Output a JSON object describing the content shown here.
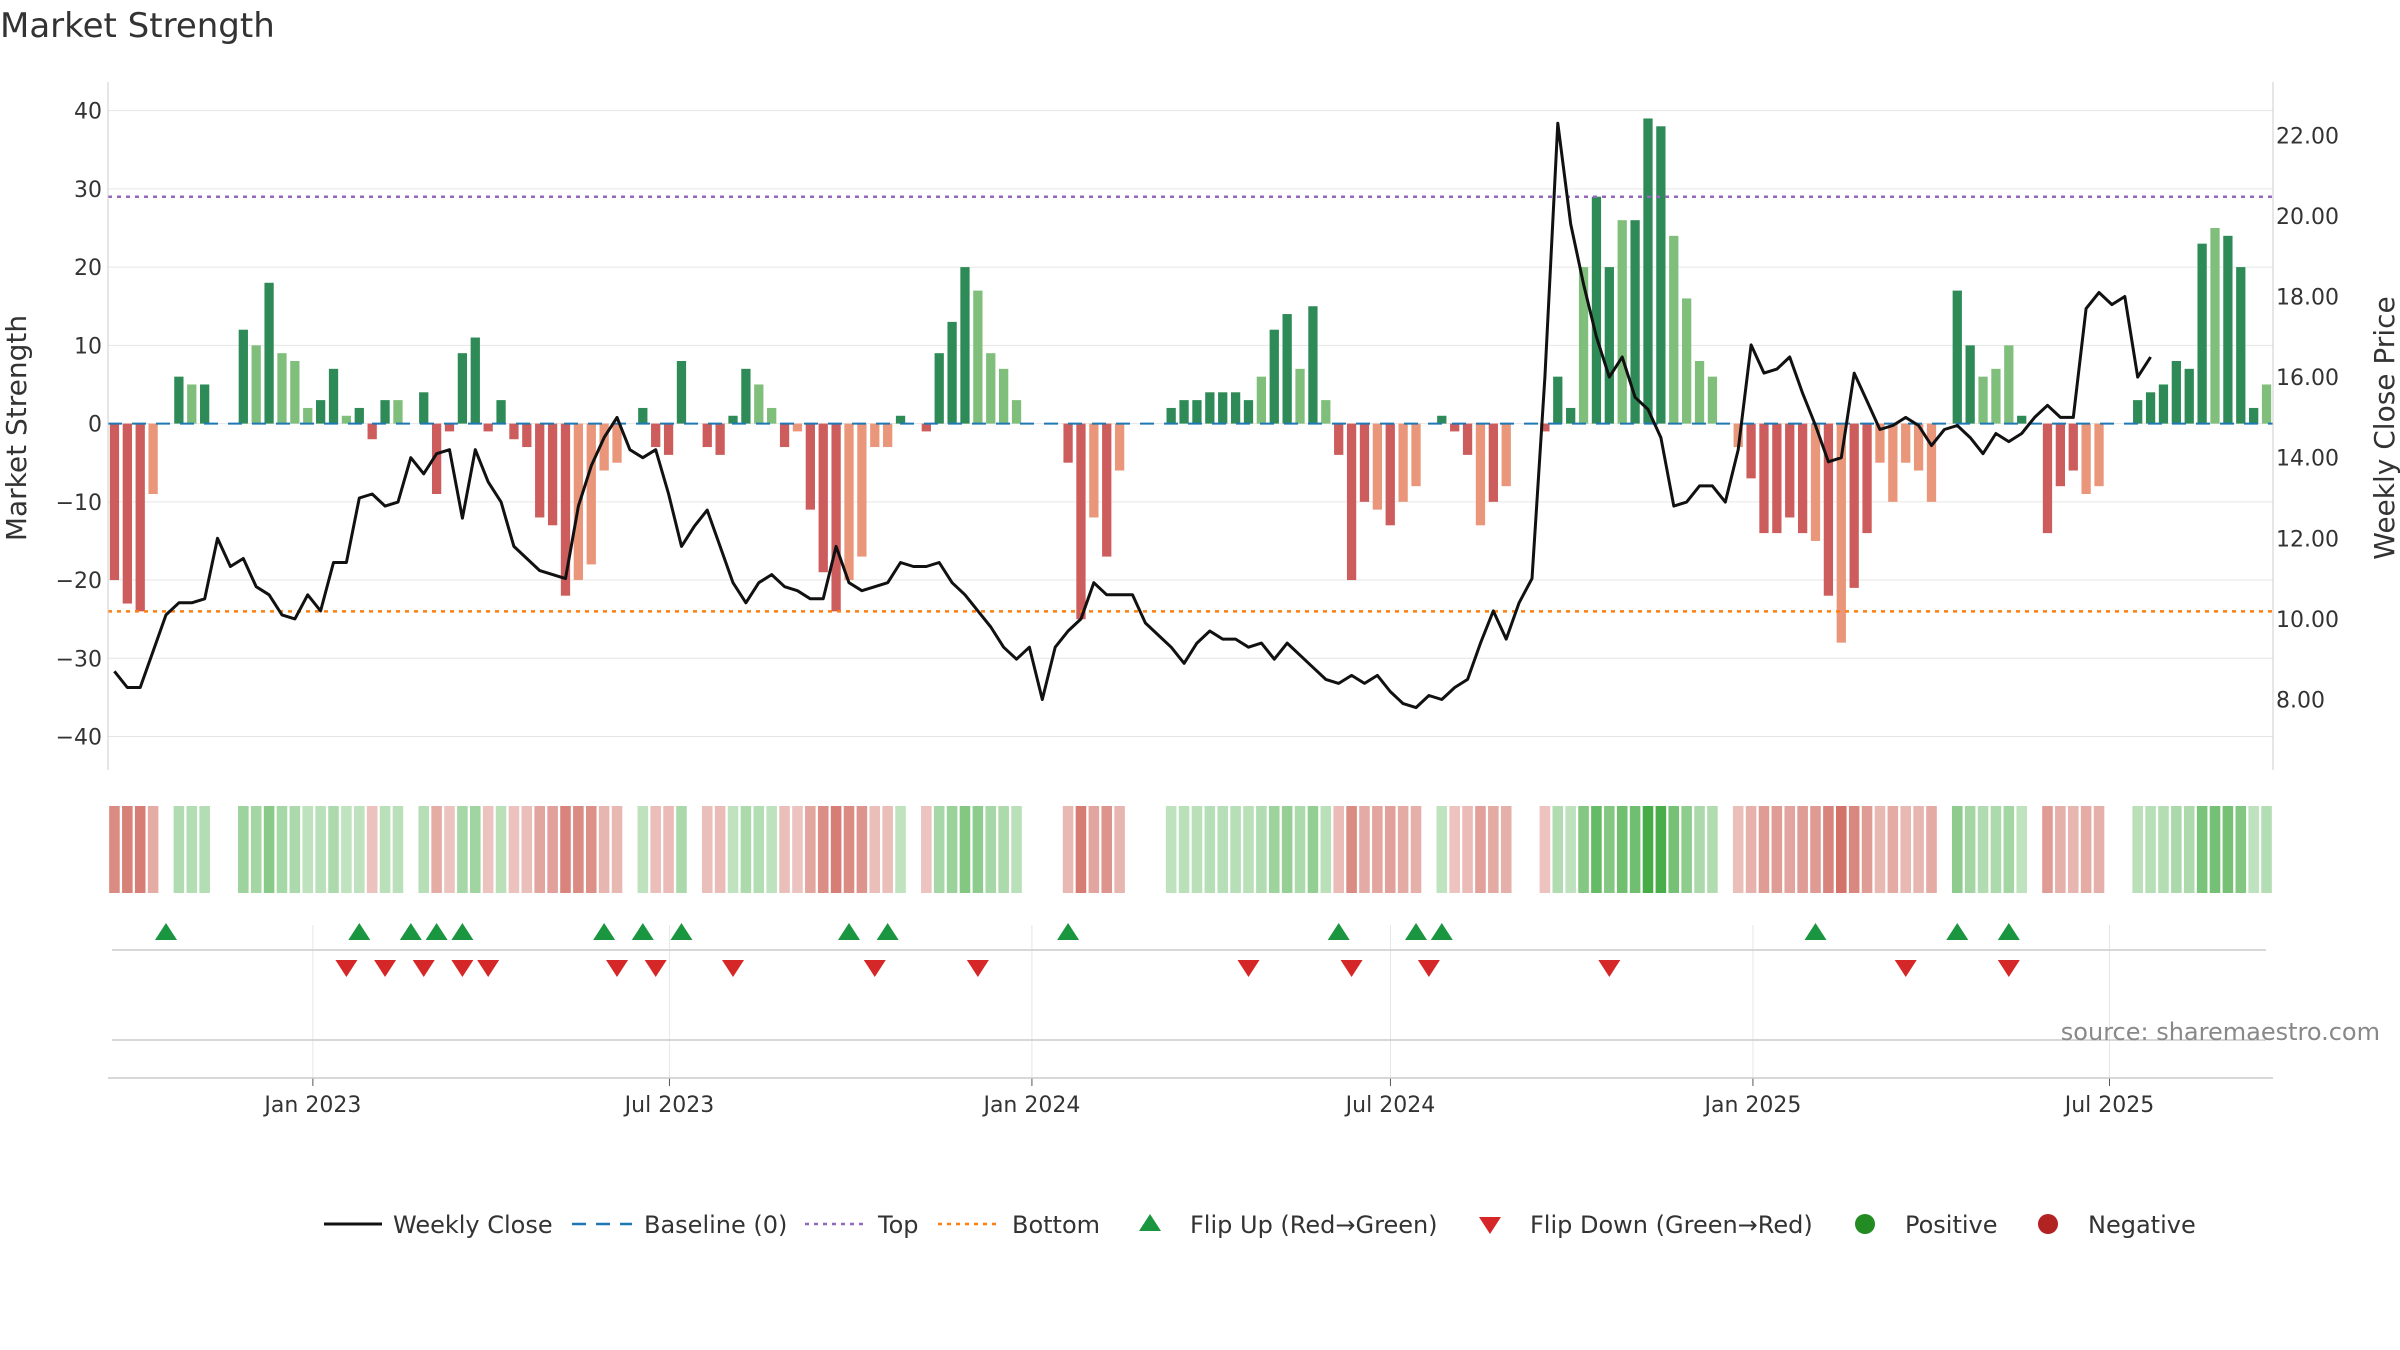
{
  "chart_data": {
    "type": "bar",
    "title": "Market Strength",
    "ylabel": "Market Strength",
    "y2label": "Weekly Close Price",
    "ylim": [
      -43,
      42
    ],
    "y2lim": [
      6.5,
      23.0
    ],
    "yticks": [
      40,
      30,
      20,
      10,
      0,
      -10,
      -20,
      -30,
      -40
    ],
    "yticks_labels": [
      "40",
      "30",
      "20",
      "10",
      "0",
      "−10",
      "−20",
      "−30",
      "−40"
    ],
    "y2ticks": [
      22,
      20,
      18,
      16,
      14,
      12,
      10,
      8
    ],
    "y2ticks_labels": [
      "22.00",
      "20.00",
      "18.00",
      "16.00",
      "14.00",
      "12.00",
      "10.00",
      "8.00"
    ],
    "x_start": "2022-09-19",
    "x_end": "2025-09-22",
    "xticks": [
      {
        "date": "2023-01-01",
        "label": "Jan 2023"
      },
      {
        "date": "2023-07-01",
        "label": "Jul 2023"
      },
      {
        "date": "2024-01-01",
        "label": "Jan 2024"
      },
      {
        "date": "2024-07-01",
        "label": "Jul 2024"
      },
      {
        "date": "2025-01-01",
        "label": "Jan 2025"
      },
      {
        "date": "2025-07-01",
        "label": "Jul 2025"
      }
    ],
    "top_line": 29,
    "bottom_line": -24,
    "baseline": 0,
    "colors": {
      "pos_dark": "#2e8b57",
      "pos_light": "#7fbf7b",
      "neg_dark": "#cd5c5c",
      "neg_light": "#e9967a",
      "line": "#111111",
      "baseline": "#1f77b4",
      "top": "#9467bd",
      "bottom": "#ff7f0e",
      "flip_up": "#1a9641",
      "flip_down": "#d62728",
      "positive": "#228b22",
      "negative": "#b22222"
    },
    "strength": [
      -20,
      -23,
      -24,
      -9,
      0,
      6,
      5,
      5,
      0,
      0,
      12,
      10,
      18,
      9,
      8,
      2,
      3,
      7,
      1,
      2,
      -2,
      3,
      3,
      0,
      4,
      -9,
      -1,
      9,
      11,
      -1,
      3,
      -2,
      -3,
      -12,
      -13,
      -22,
      -20,
      -18,
      -6,
      -5,
      0,
      2,
      -3,
      -4,
      8,
      0,
      -3,
      -4,
      1,
      7,
      5,
      2,
      -3,
      -1,
      -11,
      -19,
      -24,
      -20,
      -17,
      -3,
      -3,
      1,
      0,
      -1,
      9,
      13,
      20,
      17,
      9,
      7,
      3,
      0,
      0,
      0,
      -5,
      -25,
      -12,
      -17,
      -6,
      0,
      0,
      0,
      2,
      3,
      3,
      4,
      4,
      4,
      3,
      6,
      12,
      14,
      7,
      15,
      3,
      -4,
      -20,
      -10,
      -11,
      -13,
      -10,
      -8,
      0,
      1,
      -1,
      -4,
      -13,
      -10,
      -8,
      0,
      0,
      -1,
      6,
      2,
      20,
      29,
      20,
      26,
      26,
      39,
      38,
      24,
      16,
      8,
      6,
      0,
      -3,
      -7,
      -14,
      -14,
      -12,
      -14,
      -15,
      -22,
      -28,
      -21,
      -14,
      -5,
      -10,
      -5,
      -6,
      -10,
      0,
      17,
      10,
      6,
      7,
      10,
      1,
      0,
      -14,
      -8,
      -6,
      -9,
      -8,
      0,
      0,
      3,
      4,
      5,
      8,
      7,
      23,
      25,
      24,
      20,
      2,
      5
    ],
    "shade": [
      0,
      0,
      0,
      1,
      0,
      0,
      1,
      0,
      0,
      0,
      0,
      1,
      0,
      1,
      1,
      1,
      0,
      0,
      1,
      0,
      0,
      0,
      1,
      0,
      0,
      0,
      0,
      0,
      0,
      0,
      0,
      0,
      0,
      0,
      0,
      0,
      1,
      1,
      1,
      1,
      0,
      0,
      0,
      0,
      0,
      0,
      0,
      0,
      0,
      0,
      1,
      1,
      0,
      1,
      0,
      0,
      0,
      1,
      1,
      1,
      1,
      0,
      0,
      0,
      0,
      0,
      0,
      1,
      1,
      1,
      1,
      0,
      0,
      0,
      0,
      0,
      1,
      0,
      1,
      0,
      0,
      0,
      0,
      0,
      0,
      0,
      0,
      0,
      0,
      1,
      0,
      0,
      1,
      0,
      1,
      0,
      0,
      0,
      1,
      0,
      1,
      1,
      0,
      0,
      0,
      0,
      1,
      0,
      1,
      0,
      0,
      0,
      0,
      0,
      1,
      0,
      0,
      1,
      0,
      0,
      0,
      1,
      1,
      1,
      1,
      1,
      1,
      0,
      0,
      0,
      0,
      0,
      1,
      0,
      1,
      0,
      0,
      1,
      1,
      1,
      1,
      1,
      1,
      0,
      0,
      1,
      1,
      1,
      0,
      1,
      0,
      0,
      0,
      1,
      1,
      0,
      1,
      0,
      0,
      0,
      0,
      0,
      0,
      1,
      0,
      0,
      0,
      1,
      1,
      1,
      1
    ],
    "close": [
      8.7,
      8.3,
      8.3,
      9.2,
      10.1,
      10.4,
      10.4,
      10.5,
      12.0,
      11.3,
      11.5,
      10.8,
      10.6,
      10.1,
      10.0,
      10.6,
      10.2,
      11.4,
      11.4,
      13.0,
      13.1,
      12.8,
      12.9,
      14.0,
      13.6,
      14.1,
      14.2,
      12.5,
      14.2,
      13.4,
      12.9,
      11.8,
      11.5,
      11.2,
      11.1,
      11.0,
      12.8,
      13.8,
      14.5,
      15.0,
      14.2,
      14.0,
      14.2,
      13.1,
      11.8,
      12.3,
      12.7,
      11.8,
      10.9,
      10.4,
      10.9,
      11.1,
      10.8,
      10.7,
      10.5,
      10.5,
      11.8,
      10.9,
      10.7,
      10.8,
      10.9,
      11.4,
      11.3,
      11.3,
      11.4,
      10.9,
      10.6,
      10.2,
      9.8,
      9.3,
      9.0,
      9.3,
      8.0,
      9.3,
      9.7,
      10.0,
      10.9,
      10.6,
      10.6,
      10.6,
      9.9,
      9.6,
      9.3,
      8.9,
      9.4,
      9.7,
      9.5,
      9.5,
      9.3,
      9.4,
      9.0,
      9.4,
      9.1,
      8.8,
      8.5,
      8.4,
      8.6,
      8.4,
      8.6,
      8.2,
      7.9,
      7.8,
      8.1,
      8.0,
      8.3,
      8.5,
      9.4,
      10.2,
      9.5,
      10.4,
      11.0,
      16.0,
      22.3,
      19.8,
      18.3,
      17.0,
      16.0,
      16.5,
      15.5,
      15.2,
      14.5,
      12.8,
      12.9,
      13.3,
      13.3,
      12.9,
      14.2,
      16.8,
      16.1,
      16.2,
      16.5,
      15.6,
      14.8,
      13.9,
      14.0,
      16.1,
      15.4,
      14.7,
      14.8,
      15.0,
      14.8,
      14.3,
      14.7,
      14.8,
      14.5,
      14.1,
      14.6,
      14.4,
      14.6,
      15.0,
      15.3,
      15.0,
      15.0,
      17.7,
      18.1,
      17.8,
      18.0,
      16.0,
      16.5
    ],
    "flip_up_idx": [
      4,
      19,
      23,
      25,
      27,
      38,
      41,
      44,
      57,
      60,
      74,
      95,
      101,
      103,
      132,
      143,
      147
    ],
    "flip_down_idx": [
      18,
      21,
      24,
      27,
      29,
      39,
      42,
      48,
      59,
      67,
      88,
      96,
      102,
      116,
      139,
      147
    ],
    "source": "source: sharemaestro.com",
    "legend": [
      {
        "kind": "line",
        "label": "Weekly Close"
      },
      {
        "kind": "baseline",
        "label": "Baseline (0)"
      },
      {
        "kind": "top",
        "label": "Top"
      },
      {
        "kind": "bottom",
        "label": "Bottom"
      },
      {
        "kind": "flip_up",
        "label": "Flip Up (Red→Green)"
      },
      {
        "kind": "flip_down",
        "label": "Flip Down (Green→Red)"
      },
      {
        "kind": "positive",
        "label": "Positive"
      },
      {
        "kind": "negative",
        "label": "Negative"
      }
    ]
  }
}
